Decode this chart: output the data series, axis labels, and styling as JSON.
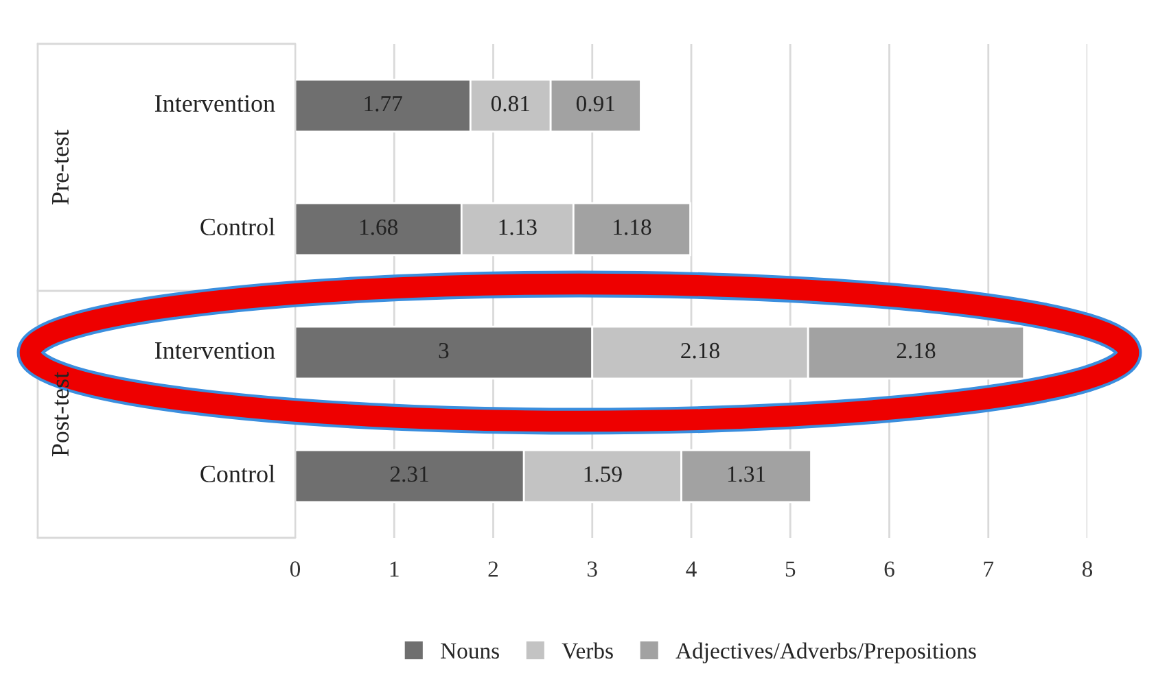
{
  "chart_data": {
    "type": "bar",
    "orientation": "horizontal",
    "stacked": true,
    "categories": [
      "Intervention",
      "Control",
      "Intervention",
      "Control"
    ],
    "series": [
      {
        "name": "Nouns",
        "color": "#6f6f6f",
        "values": [
          1.77,
          1.68,
          3,
          2.31
        ]
      },
      {
        "name": "Verbs",
        "color": "#c3c3c3",
        "values": [
          0.81,
          1.13,
          2.18,
          1.59
        ]
      },
      {
        "name": "Adjectives/Adverbs/Prepositions",
        "color": "#a2a2a2",
        "values": [
          0.91,
          1.18,
          2.18,
          1.31
        ]
      }
    ],
    "annotations": [
      "Pre-test",
      "Post-test"
    ],
    "xlim": [
      0,
      8
    ],
    "xticks": [
      0,
      1,
      2,
      3,
      4,
      5,
      6,
      7,
      8
    ],
    "grid": "x",
    "legend": "bottom",
    "data_labels": true
  }
}
